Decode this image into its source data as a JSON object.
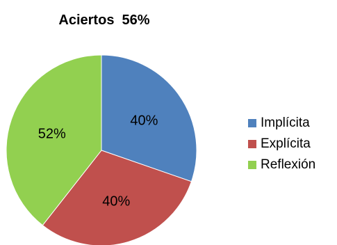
{
  "chart_data": {
    "type": "pie",
    "title": "Aciertos  56%",
    "slices": [
      {
        "name": "Implícita",
        "value": 40,
        "label": "40%",
        "color": "#4F81BD"
      },
      {
        "name": "Explícita",
        "value": 40,
        "label": "40%",
        "color": "#C0504D"
      },
      {
        "name": "Reflexión",
        "value": 52,
        "label": "52%",
        "color": "#92D050"
      }
    ],
    "legend_position": "right"
  }
}
